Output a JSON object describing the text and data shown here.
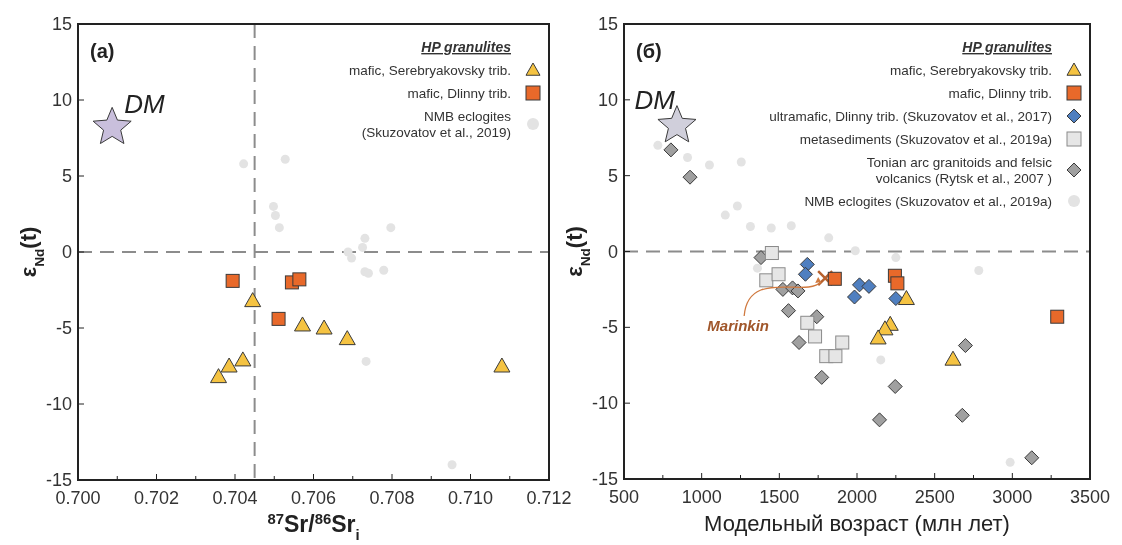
{
  "chart_data": [
    {
      "type": "scatter",
      "title": "(a)",
      "xlabel": "$^{87}$Sr/$^{86}$Sr$_{i}$",
      "ylabel": "ε$_{Nd}$(t)",
      "legend_title": "HP granulites",
      "legend": "top right",
      "grid": false,
      "xlim": [
        0.7,
        0.712
      ],
      "ylim": [
        -15,
        15
      ],
      "xticks": [
        {
          "value": 0.7,
          "label": "0.700"
        },
        {
          "value": 0.701,
          "label": null
        },
        {
          "value": 0.702,
          "label": "0.702"
        },
        {
          "value": 0.703,
          "label": null
        },
        {
          "value": 0.704,
          "label": "0.704"
        },
        {
          "value": 0.705,
          "label": null
        },
        {
          "value": 0.706,
          "label": "0.706"
        },
        {
          "value": 0.707,
          "label": null
        },
        {
          "value": 0.708,
          "label": "0.708"
        },
        {
          "value": 0.709,
          "label": null
        },
        {
          "value": 0.71,
          "label": "0.710"
        },
        {
          "value": 0.711,
          "label": null
        },
        {
          "value": 0.712,
          "label": "0.712"
        }
      ],
      "yticks": [
        -15,
        -10,
        -5,
        0,
        5,
        10,
        15
      ],
      "ref_lines": [
        {
          "axis": "y",
          "value": 0,
          "color": "#8c8c8c",
          "line_style": "dashed"
        },
        {
          "axis": "x",
          "value": 0.7045,
          "color": "#8c8c8c",
          "line_style": "dashed"
        }
      ],
      "annotations": [
        {
          "text": "DM",
          "x": 0.70087,
          "y": 8.2
        }
      ],
      "series": [
        {
          "name": "mafic, Serebryakovsky trib.",
          "color": "#f5c342",
          "marker": "triangle",
          "x": [
            0.70445,
            0.70358,
            0.70385,
            0.7042,
            0.70572,
            0.70627,
            0.70686,
            0.7108
          ],
          "values": [
            -3.2,
            -8.2,
            -7.5,
            -7.1,
            -4.8,
            -5.0,
            -5.7,
            -7.5
          ]
        },
        {
          "name": "mafic, Dlinny trib.",
          "color": "#e8692a",
          "marker": "square",
          "x": [
            0.70394,
            0.70545,
            0.70564,
            0.70511
          ],
          "values": [
            -1.9,
            -2.0,
            -1.8,
            -4.4
          ]
        },
        {
          "name": "NMB eclogites\n(Skuzovatov et al., 2019)",
          "color": "#e3e3e3",
          "marker": "circle",
          "x": [
            0.70422,
            0.70528,
            0.70498,
            0.70503,
            0.70513,
            0.70797,
            0.70731,
            0.70725,
            0.70688,
            0.70697,
            0.70731,
            0.7074,
            0.70779,
            0.70734,
            0.70953
          ],
          "values": [
            5.8,
            6.1,
            3.0,
            2.4,
            1.6,
            1.6,
            0.9,
            0.3,
            0.0,
            -0.4,
            -1.3,
            -1.4,
            -1.2,
            -7.2,
            -14.0
          ]
        },
        {
          "color": "#c9bfdc",
          "marker": "star",
          "x": [
            0.70087
          ],
          "values": [
            8.2
          ]
        }
      ]
    },
    {
      "type": "scatter",
      "title": "(б)",
      "xlabel": "Модельный возраст (млн лет)",
      "ylabel": "ε$_{Nd}$(t)",
      "legend_title": "HP granulites",
      "legend": "top right",
      "grid": false,
      "xlim": [
        500,
        3500
      ],
      "ylim": [
        -15,
        15
      ],
      "xticks": [
        500,
        {
          "value": 750,
          "label": null
        },
        1000,
        {
          "value": 1250,
          "label": null
        },
        1500,
        {
          "value": 1750,
          "label": null
        },
        2000,
        {
          "value": 2250,
          "label": null
        },
        2500,
        {
          "value": 2750,
          "label": null
        },
        3000,
        {
          "value": 3250,
          "label": null
        },
        3500
      ],
      "yticks": [
        -15,
        -10,
        -5,
        0,
        5,
        10,
        15
      ],
      "ref_lines": [
        {
          "axis": "y",
          "value": 0,
          "color": "#8c8c8c",
          "line_style": "dashed"
        }
      ],
      "annotations": [
        {
          "text": "DM",
          "x": 841,
          "y": 8.3
        },
        {
          "text": "Marinkin",
          "x": 1795,
          "y": -1.75
        }
      ],
      "series": [
        {
          "name": "mafic, Serebryakovsky trib.",
          "color": "#f5c342",
          "marker": "triangle",
          "x": [
            2318,
            2214,
            2180,
            2136,
            2618
          ],
          "values": [
            -3.1,
            -4.8,
            -5.1,
            -5.7,
            -7.1
          ]
        },
        {
          "name": "mafic, Dlinny trib.",
          "color": "#e8692a",
          "marker": "square",
          "x": [
            1857,
            2244,
            2260,
            3289
          ],
          "values": [
            -1.8,
            -1.6,
            -2.1,
            -4.3
          ]
        },
        {
          "name": "ultramafic, Dlinny trib. (Skuzovatov et al., 2017)",
          "color": "#4f7fc0",
          "marker": "diamond",
          "x": [
            1680,
            1668,
            2016,
            2077,
            1984,
            2250
          ],
          "values": [
            -0.85,
            -1.5,
            -2.2,
            -2.3,
            -3.0,
            -3.1
          ]
        },
        {
          "name": "metasediments (Skuzovatov et al., 2019a)",
          "color": "#e6e6e6",
          "marker": "square",
          "x": [
            1452,
            1416,
            1495,
            1680,
            1730,
            1905,
            1802,
            1861
          ],
          "values": [
            -0.1,
            -1.9,
            -1.5,
            -4.7,
            -5.6,
            -6.0,
            -6.9,
            -6.9
          ]
        },
        {
          "name": "Tonian arc granitoids and felsic\nvolcanics (Rytsk et al., 2007 )",
          "color": "#a0a0a0",
          "marker": "diamond",
          "x": [
            802,
            925,
            1382,
            1523,
            1585,
            1620,
            1559,
            1741,
            1627,
            1773,
            2246,
            2698,
            2145,
            2678,
            3125
          ],
          "values": [
            6.7,
            4.9,
            -0.4,
            -2.5,
            -2.4,
            -2.6,
            -3.9,
            -4.3,
            -6.0,
            -8.3,
            -8.9,
            -6.2,
            -11.1,
            -10.8,
            -13.6
          ]
        },
        {
          "name": "NMB eclogites (Skuzovatov et al., 2019a)",
          "color": "#e3e3e3",
          "marker": "circle",
          "x": [
            718,
            909,
            1050,
            1255,
            1230,
            1152,
            1314,
            1448,
            1577,
            1818,
            1989,
            2250,
            1359,
            2784,
            2153,
            2986
          ],
          "values": [
            7.0,
            6.2,
            5.7,
            5.9,
            3.0,
            2.4,
            1.65,
            1.55,
            1.7,
            0.9,
            0.05,
            -0.4,
            -1.1,
            -1.25,
            -7.15,
            -13.9
          ]
        },
        {
          "color": "#d0cfdb",
          "marker": "star",
          "x": [
            841
          ],
          "values": [
            8.3
          ]
        },
        {
          "color": "#b8622e",
          "marker": "cross",
          "x": [
            1795
          ],
          "values": [
            -1.75
          ]
        }
      ]
    }
  ]
}
